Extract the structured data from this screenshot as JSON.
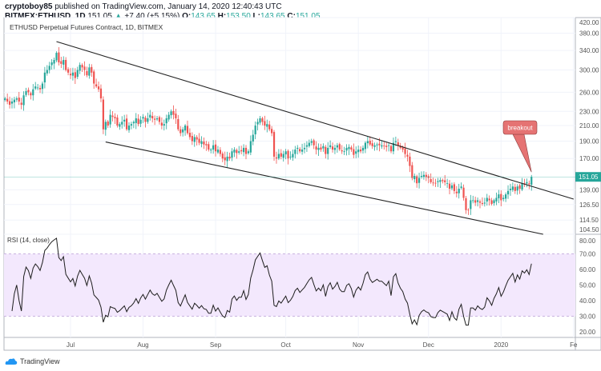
{
  "header": {
    "author": "cryptoboy85",
    "published": "published on TradingView.com, January 14, 2020 12:40:43 UTC",
    "symbol": "BITMEX:ETHUSD, 1D",
    "last": "151.05",
    "change": "+7.40 (+5.15%)",
    "o_label": "O:",
    "o": "143.65",
    "h_label": "H:",
    "h": "153.50",
    "l_label": "L:",
    "l": "143.65",
    "c_label": "C:",
    "c": "151.05"
  },
  "footer": {
    "brand": "TradingView"
  },
  "colors": {
    "up": "#26a69a",
    "down": "#ef5350",
    "rsi_band": "#f3e8fd",
    "rsi_line": "#1e1e1e",
    "annotation": "#e57373",
    "last_price": "#26a69a"
  },
  "chart_data": [
    {
      "type": "candlestick",
      "title": "ETHUSD Perpetual Futures Contract, 1D, BITMEX",
      "start_date": "2019-06-03",
      "scale": "log",
      "ylim": [
        104.5,
        420
      ],
      "y_ticks": [
        "420.00",
        "380.00",
        "340.00",
        "300.00",
        "260.00",
        "230.00",
        "210.00",
        "190.00",
        "170.00",
        "139.00",
        "126.50",
        "114.50",
        "104.50"
      ],
      "last_price_label": "151.05",
      "x_ticks": [
        "Jul",
        "Aug",
        "Sep",
        "Oct",
        "Nov",
        "Dec",
        "2020",
        "Fe"
      ],
      "x_tick_dates": [
        "2019-07-01",
        "2019-08-01",
        "2019-09-01",
        "2019-10-01",
        "2019-11-01",
        "2019-12-01",
        "2020-01-01",
        "2020-02-01"
      ],
      "closes": [
        250,
        245,
        240,
        245,
        248,
        250,
        245,
        240,
        255,
        262,
        260,
        255,
        265,
        270,
        268,
        265,
        275,
        295,
        300,
        308,
        315,
        320,
        335,
        315,
        312,
        320,
        300,
        295,
        290,
        295,
        285,
        300,
        310,
        305,
        300,
        290,
        305,
        295,
        275,
        270,
        265,
        250,
        205,
        215,
        210,
        225,
        222,
        220,
        210,
        212,
        215,
        218,
        205,
        210,
        212,
        215,
        220,
        212,
        218,
        222,
        215,
        220,
        225,
        220,
        218,
        220,
        215,
        210,
        212,
        220,
        225,
        230,
        225,
        220,
        205,
        200,
        205,
        210,
        200,
        195,
        190,
        195,
        192,
        188,
        190,
        186,
        185,
        180,
        180,
        185,
        178,
        180,
        175,
        170,
        168,
        172,
        170,
        178,
        180,
        176,
        178,
        178,
        182,
        175,
        178,
        190,
        198,
        210,
        215,
        220,
        215,
        210,
        212,
        205,
        200,
        172,
        170,
        175,
        172,
        175,
        178,
        170,
        172,
        175,
        180,
        182,
        178,
        180,
        182,
        185,
        188,
        190,
        185,
        180,
        182,
        180,
        184,
        175,
        182,
        185,
        180,
        182,
        185,
        180,
        178,
        178,
        182,
        183,
        180,
        174,
        178,
        180,
        178,
        182,
        188,
        190,
        186,
        184,
        185,
        186,
        185,
        185,
        184,
        183,
        185,
        178,
        188,
        190,
        185,
        182,
        180,
        175,
        172,
        162,
        150,
        152,
        145,
        150,
        152,
        153,
        151,
        150,
        146,
        145,
        145,
        147,
        148,
        147,
        146,
        145,
        140,
        143,
        138,
        136,
        140,
        142,
        132,
        122,
        122,
        130,
        130,
        128,
        130,
        128,
        127,
        128,
        132,
        130,
        127,
        130,
        132,
        135,
        130,
        132,
        135,
        138,
        140,
        142,
        138,
        142,
        140,
        145,
        144,
        146,
        144,
        151
      ],
      "trendlines": [
        {
          "from": [
            "2019-06-25",
            360
          ],
          "to": [
            "2020-02-01",
            131
          ]
        },
        {
          "from": [
            "2019-07-16",
            189
          ],
          "to": [
            "2020-01-19",
            104.5
          ]
        }
      ],
      "annotation": {
        "text": "breakout",
        "points_to": [
          "2020-01-14",
          151
        ]
      }
    },
    {
      "type": "line",
      "title": "RSI (14, close)",
      "ylim": [
        15,
        82
      ],
      "band": [
        30,
        70
      ],
      "y_ticks": [
        "80.00",
        "70.00",
        "60.00",
        "50.00",
        "40.00",
        "30.00",
        "20.00"
      ]
    }
  ]
}
